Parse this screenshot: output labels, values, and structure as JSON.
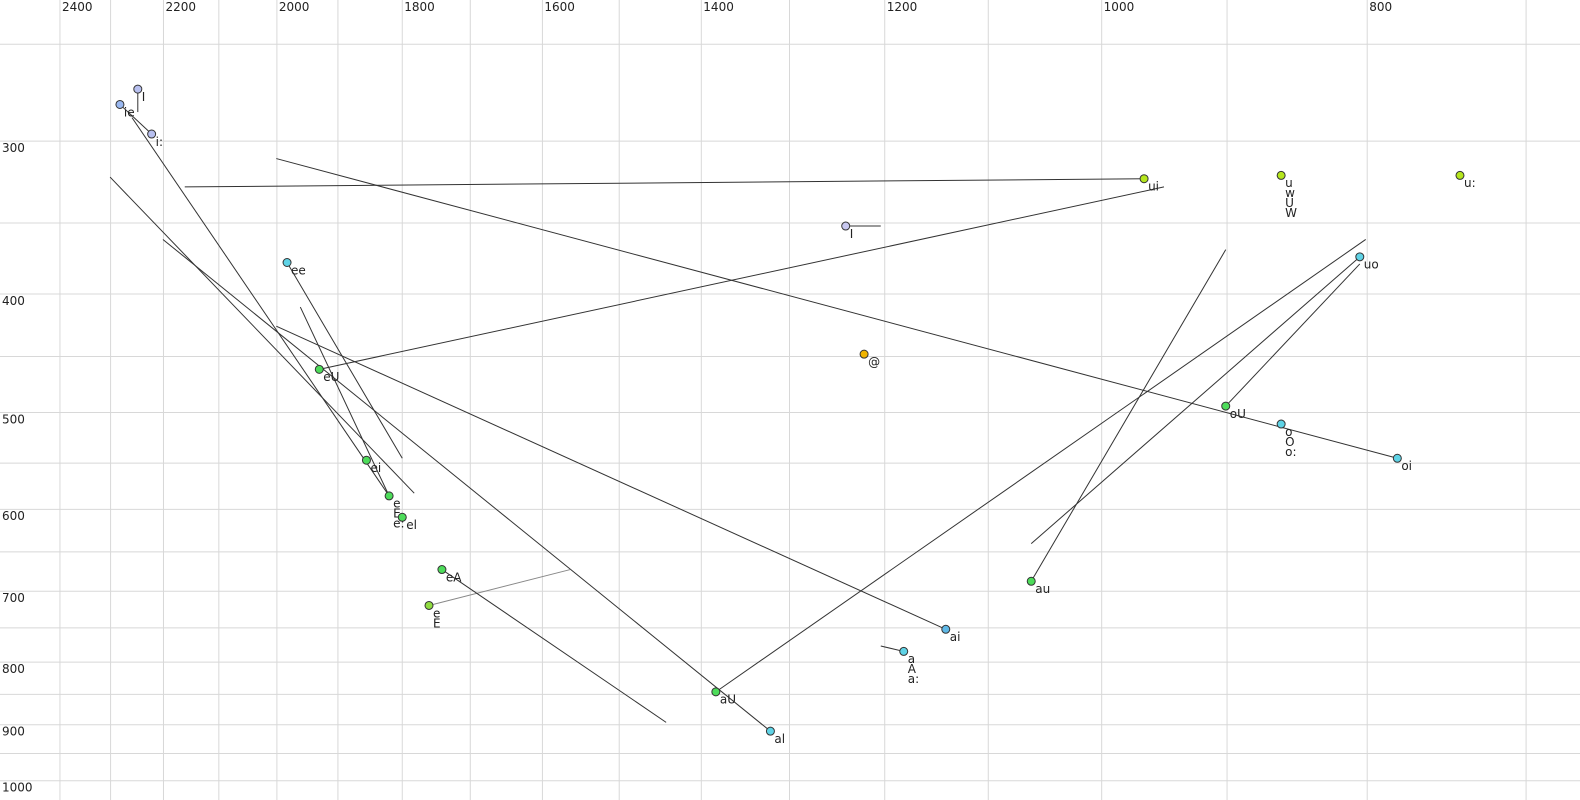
{
  "chart_data": {
    "type": "vowel-plot",
    "xscale": "log",
    "yscale": "log",
    "x_reversed": true,
    "xlim": [
      2524,
      669
    ],
    "ylim": [
      230,
      1037
    ],
    "xticks": [
      2400,
      2200,
      2000,
      1800,
      1600,
      1400,
      1200,
      1000,
      800
    ],
    "yticks": [
      300,
      400,
      500,
      600,
      700,
      800,
      900,
      1000
    ],
    "xgrid": [
      2300,
      2100,
      1900,
      1700,
      1500,
      1300,
      1100,
      900,
      700
    ],
    "ygrid": [
      250,
      350,
      450,
      550,
      650,
      750,
      850,
      950
    ],
    "grid": true,
    "points": [
      {
        "labels": [
          "I"
        ],
        "x": 2248,
        "y": 272,
        "color": "#b8c0f0"
      },
      {
        "labels": [
          "ie"
        ],
        "x": 2282,
        "y": 280,
        "color": "#9ab8f0"
      },
      {
        "labels": [
          "i:"
        ],
        "x": 2222,
        "y": 296,
        "color": "#b8c0f0"
      },
      {
        "labels": [
          "ui"
        ],
        "x": 965,
        "y": 322,
        "color": "#b5e61d"
      },
      {
        "labels": [
          "u",
          "w",
          "U",
          "W"
        ],
        "x": 860,
        "y": 320,
        "color": "#b5e61d"
      },
      {
        "labels": [
          "u:"
        ],
        "x": 740,
        "y": 320,
        "color": "#b5e61d"
      },
      {
        "labels": [
          "I"
        ],
        "x": 1240,
        "y": 352,
        "color": "#c8c8f0"
      },
      {
        "labels": [
          "ee"
        ],
        "x": 1983,
        "y": 377,
        "color": "#5fd3e6"
      },
      {
        "labels": [
          "uo"
        ],
        "x": 805,
        "y": 373,
        "color": "#5fd3e6"
      },
      {
        "labels": [
          "@"
        ],
        "x": 1221,
        "y": 448,
        "color": "#f0b400"
      },
      {
        "labels": [
          "eU"
        ],
        "x": 1930,
        "y": 461,
        "color": "#4ddc5a"
      },
      {
        "labels": [
          "ei"
        ],
        "x": 1855,
        "y": 547,
        "color": "#4ddc5a"
      },
      {
        "labels": [
          "oU"
        ],
        "x": 901,
        "y": 494,
        "color": "#4ddc5a"
      },
      {
        "labels": [
          "o",
          "O",
          "o:"
        ],
        "x": 860,
        "y": 511,
        "color": "#5fd3e6"
      },
      {
        "labels": [
          "oi"
        ],
        "x": 780,
        "y": 545,
        "color": "#5fd3e6"
      },
      {
        "labels": [
          "e",
          "E",
          "e:"
        ],
        "x": 1820,
        "y": 585,
        "color": "#4ddc5a"
      },
      {
        "labels": [
          "el"
        ],
        "x": 1800,
        "y": 609,
        "color": "#4ddc5a"
      },
      {
        "labels": [
          "eA"
        ],
        "x": 1741,
        "y": 672,
        "color": "#4ddc5a"
      },
      {
        "labels": [
          "e",
          "E"
        ],
        "x": 1760,
        "y": 719,
        "color": "#90dc40"
      },
      {
        "labels": [
          "au"
        ],
        "x": 1061,
        "y": 687,
        "color": "#4ddc5a"
      },
      {
        "labels": [
          "ai"
        ],
        "x": 1140,
        "y": 752,
        "color": "#5fb8e6"
      },
      {
        "labels": [
          "a",
          "A",
          "a:"
        ],
        "x": 1181,
        "y": 784,
        "color": "#5fd3e6"
      },
      {
        "labels": [
          "aU"
        ],
        "x": 1383,
        "y": 846,
        "color": "#4ddc5a"
      },
      {
        "labels": [
          "al"
        ],
        "x": 1321,
        "y": 911,
        "color": "#5fd3e6"
      }
    ],
    "segments": [
      {
        "x": [
          2161,
          965
        ],
        "y": [
          327,
          322
        ],
        "color": "#333333"
      },
      {
        "x": [
          2001,
          780
        ],
        "y": [
          310,
          545
        ],
        "color": "#333333"
      },
      {
        "x": [
          1930,
          949
        ],
        "y": [
          461,
          327
        ],
        "color": "#333333"
      },
      {
        "x": [
          2301,
          1782
        ],
        "y": [
          321,
          582
        ],
        "color": "#333333"
      },
      {
        "x": [
          2201,
          1321
        ],
        "y": [
          361,
          911
        ],
        "color": "#333333"
      },
      {
        "x": [
          2001,
          1140
        ],
        "y": [
          425,
          752
        ],
        "color": "#333333"
      },
      {
        "x": [
          1983,
          1800
        ],
        "y": [
          377,
          545
        ],
        "color": "#333333"
      },
      {
        "x": [
          1961,
          1820
        ],
        "y": [
          410,
          585
        ],
        "color": "#333333"
      },
      {
        "x": [
          2259,
          1820
        ],
        "y": [
          287,
          585
        ],
        "color": "#333333"
      },
      {
        "x": [
          1760,
          1563
        ],
        "y": [
          719,
          672
        ],
        "color": "#888888"
      },
      {
        "x": [
          1741,
          1442
        ],
        "y": [
          672,
          896
        ],
        "color": "#333333"
      },
      {
        "x": [
          1383,
          801
        ],
        "y": [
          846,
          361
        ],
        "color": "#333333"
      },
      {
        "x": [
          1061,
          901
        ],
        "y": [
          687,
          368
        ],
        "color": "#333333"
      },
      {
        "x": [
          1061,
          805
        ],
        "y": [
          640,
          373
        ],
        "color": "#333333"
      },
      {
        "x": [
          901,
          805
        ],
        "y": [
          494,
          378
        ],
        "color": "#333333"
      },
      {
        "x": [
          1240,
          1204
        ],
        "y": [
          352,
          352
        ],
        "color": "#333333"
      },
      {
        "x": [
          1204,
          1181
        ],
        "y": [
          776,
          784
        ],
        "color": "#333333"
      },
      {
        "x": [
          2248,
          2248
        ],
        "y": [
          272,
          284
        ],
        "color": "#333333"
      },
      {
        "x": [
          2282,
          2222
        ],
        "y": [
          280,
          296
        ],
        "color": "#333333"
      }
    ]
  }
}
